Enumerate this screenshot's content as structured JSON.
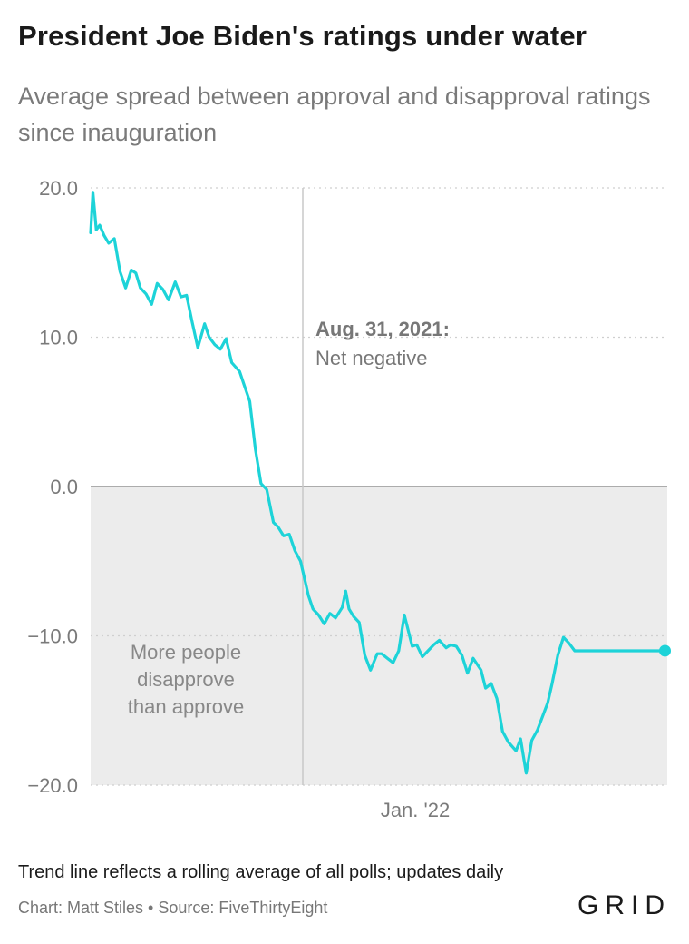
{
  "header": {
    "title": "President Joe Biden's ratings under water",
    "subtitle": "Average spread between approval and disapproval ratings since inauguration"
  },
  "chart_data": {
    "type": "line",
    "title": "President Joe Biden's ratings under water",
    "subtitle": "Average spread between approval and disapproval ratings since inauguration",
    "xlabel": "",
    "ylabel": "",
    "x_range": [
      "2021-01-20",
      "2022-06-15"
    ],
    "ylim": [
      -20,
      20
    ],
    "yticks": [
      20,
      10,
      0,
      -10,
      -20
    ],
    "ytick_labels": [
      "20.0",
      "10.0",
      "0.0",
      "−10.0",
      "−20.0"
    ],
    "xticks": [
      {
        "x": "2022-01-01",
        "label": "Jan. '22"
      }
    ],
    "grid": "horizontal dotted",
    "negative_region_fill": "#ececec",
    "line_color": "#1dd3d8",
    "annotations": [
      {
        "x": "2021-08-31",
        "title": "Aug. 31, 2021:",
        "text": "Net negative"
      },
      {
        "region": "below zero",
        "text": [
          "More people",
          "disapprove",
          "than approve"
        ]
      }
    ],
    "series": [
      {
        "x": [
          "2021-01-20",
          "2021-01-22",
          "2021-01-25",
          "2021-01-28",
          "2021-02-01",
          "2021-02-05",
          "2021-02-10",
          "2021-02-15",
          "2021-02-20",
          "2021-02-25",
          "2021-03-01",
          "2021-03-05",
          "2021-03-10",
          "2021-03-15",
          "2021-03-20",
          "2021-03-25",
          "2021-03-30",
          "2021-04-05",
          "2021-04-10",
          "2021-04-15",
          "2021-04-20",
          "2021-04-25",
          "2021-05-01",
          "2021-05-05",
          "2021-05-10",
          "2021-05-15",
          "2021-05-20",
          "2021-05-25",
          "2021-06-01",
          "2021-06-05",
          "2021-06-10",
          "2021-06-15",
          "2021-06-20",
          "2021-06-25",
          "2021-07-01",
          "2021-07-05",
          "2021-07-10",
          "2021-07-15",
          "2021-07-20",
          "2021-07-25",
          "2021-08-01",
          "2021-08-05",
          "2021-08-10",
          "2021-08-15",
          "2021-08-20",
          "2021-08-25",
          "2021-08-31",
          "2021-09-03",
          "2021-09-06",
          "2021-09-10",
          "2021-09-15",
          "2021-09-20",
          "2021-09-25",
          "2021-10-01",
          "2021-10-05",
          "2021-10-10",
          "2021-10-15",
          "2021-10-20",
          "2021-10-25",
          "2021-11-01",
          "2021-11-05",
          "2021-11-10",
          "2021-11-15",
          "2021-11-20",
          "2021-11-25",
          "2021-12-01",
          "2021-12-05",
          "2021-12-10",
          "2021-12-15",
          "2021-12-20",
          "2021-12-25",
          "2022-01-01",
          "2022-01-05",
          "2022-01-10",
          "2022-01-15",
          "2022-01-20",
          "2022-01-25",
          "2022-02-01",
          "2022-02-05",
          "2022-02-10",
          "2022-02-15",
          "2022-02-20",
          "2022-02-25",
          "2022-03-01",
          "2022-03-05",
          "2022-03-10",
          "2022-03-15",
          "2022-03-20",
          "2022-03-25",
          "2022-04-01",
          "2022-04-05",
          "2022-04-10",
          "2022-04-15",
          "2022-04-20",
          "2022-04-25",
          "2022-05-01",
          "2022-05-05",
          "2022-05-10",
          "2022-05-15",
          "2022-05-20",
          "2022-05-25",
          "2022-06-01",
          "2022-06-05",
          "2022-06-10",
          "2022-06-13"
        ],
        "values": [
          17.0,
          19.7,
          17.2,
          17.5,
          16.8,
          16.3,
          16.6,
          14.4,
          13.3,
          14.5,
          14.3,
          13.3,
          12.9,
          12.2,
          13.6,
          13.2,
          12.5,
          13.7,
          12.7,
          12.8,
          11.0,
          9.3,
          10.9,
          10.0,
          9.5,
          9.2,
          9.9,
          8.3,
          7.7,
          6.8,
          5.7,
          2.5,
          0.2,
          -0.2,
          -2.4,
          -2.7,
          -3.3,
          -3.2,
          -4.3,
          -5.0,
          -7.3,
          -8.2,
          -8.6,
          -9.2,
          -8.5,
          -8.8,
          -8.1,
          -7.0,
          -8.2,
          -8.7,
          -9.1,
          -11.3,
          -12.3,
          -11.2,
          -11.2,
          -11.5,
          -11.8,
          -11.0,
          -8.6,
          -10.7,
          -10.6,
          -11.4,
          -11.0,
          -10.6,
          -10.3,
          -10.8,
          -10.6,
          -10.7,
          -11.3,
          -12.5,
          -11.5,
          -12.3,
          -13.5,
          -13.2,
          -14.2,
          -16.4,
          -17.1,
          -17.7,
          -16.9,
          -19.2,
          -17.0,
          -16.3,
          -15.3,
          -14.5,
          -13.2,
          -11.3,
          -10.1,
          -10.5,
          -11.0,
          -11.0,
          -11.0,
          -11.0,
          -11.0,
          -11.0,
          -11.0,
          -11.0,
          -11.0,
          -11.0,
          -11.0,
          -11.0,
          -11.0,
          -11.0,
          -11.0,
          -11.0,
          -11.0
        ]
      }
    ]
  },
  "footer": {
    "note": "Trend line reflects a rolling average of all polls; updates daily",
    "credit": "Chart: Matt Stiles • Source: FiveThirtyEight",
    "logo": "GRID"
  }
}
